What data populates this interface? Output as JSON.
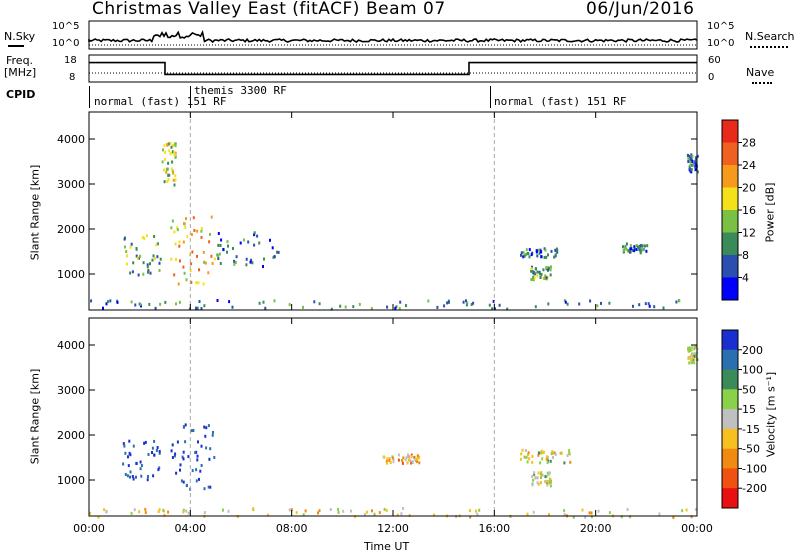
{
  "header": {
    "title": "Christmas Valley East (fitACF)",
    "beam": "Beam 07",
    "date": "06/Jun/2016"
  },
  "top_strip": {
    "left_label": "N.Sky",
    "right_label": "N.Search",
    "left_ticks": [
      "10^5",
      "10^0"
    ],
    "right_ticks": [
      "10^5",
      "10^0"
    ]
  },
  "freq_strip": {
    "left_label_1": "Freq.",
    "left_label_2": "[MHz]",
    "left_ticks": [
      "18",
      "8"
    ],
    "right_label": "Nave",
    "right_ticks": [
      "60",
      "0"
    ],
    "freq_segments": [
      {
        "start_h": 0.0,
        "end_h": 3.0,
        "level": 0.72
      },
      {
        "start_h": 3.0,
        "end_h": 15.0,
        "level": 0.28
      },
      {
        "start_h": 15.0,
        "end_h": 24.0,
        "level": 0.72
      }
    ]
  },
  "cpid": {
    "label": "CPID",
    "segments": [
      {
        "start_h": 0.0,
        "label": "normal (fast) 151 RF"
      },
      {
        "start_h": 4.0,
        "label": "themis 3300 RF"
      },
      {
        "start_h": 16.0,
        "label": "normal (fast) 151 RF"
      }
    ]
  },
  "chart_data": [
    {
      "type": "heatmap",
      "name": "power-panel",
      "ylabel": "Slant Range [km]",
      "xlabel": "",
      "xlim": [
        0,
        24
      ],
      "ylim": [
        200,
        4600
      ],
      "yticks": [
        "1000",
        "2000",
        "3000",
        "4000"
      ],
      "ytick_values": [
        1000,
        2000,
        3000,
        4000
      ],
      "colorbar": {
        "label": "Power [dB]",
        "ticks": [
          "4",
          "8",
          "12",
          "16",
          "20",
          "24",
          "28"
        ],
        "colors": [
          "#0000ff",
          "#2a4fb0",
          "#3a8a5a",
          "#7ac143",
          "#f5e11a",
          "#f59a1a",
          "#f06020",
          "#e82a1a"
        ]
      },
      "regions": [
        {
          "x": [
            1.3,
            2.8
          ],
          "y": [
            1000,
            1900
          ],
          "value": 12
        },
        {
          "x": [
            3.2,
            5.0
          ],
          "y": [
            800,
            2300
          ],
          "value": 20
        },
        {
          "x": [
            2.8,
            3.4
          ],
          "y": [
            3000,
            4000
          ],
          "value": 16
        },
        {
          "x": [
            5.0,
            7.5
          ],
          "y": [
            1200,
            2000
          ],
          "value": 8
        },
        {
          "x": [
            0,
            24
          ],
          "y": [
            250,
            450
          ],
          "value": 8
        },
        {
          "x": [
            17.0,
            18.5
          ],
          "y": [
            1400,
            1600
          ],
          "value": 8
        },
        {
          "x": [
            17.4,
            18.2
          ],
          "y": [
            900,
            1200
          ],
          "value": 12
        },
        {
          "x": [
            21.0,
            22.0
          ],
          "y": [
            1500,
            1700
          ],
          "value": 8
        },
        {
          "x": [
            23.6,
            24.0
          ],
          "y": [
            3300,
            3700
          ],
          "value": 8
        }
      ]
    },
    {
      "type": "heatmap",
      "name": "velocity-panel",
      "ylabel": "Slant Range [km]",
      "xlabel": "Time UT",
      "xlim": [
        0,
        24
      ],
      "ylim": [
        200,
        4600
      ],
      "xticks": [
        "00:00",
        "04:00",
        "08:00",
        "12:00",
        "16:00",
        "20:00",
        "00:00"
      ],
      "xtick_values": [
        0,
        4,
        8,
        12,
        16,
        20,
        24
      ],
      "yticks": [
        "1000",
        "2000",
        "3000",
        "4000"
      ],
      "ytick_values": [
        1000,
        2000,
        3000,
        4000
      ],
      "colorbar": {
        "label": "Velocity [m s⁻¹]",
        "ticks": [
          "200",
          "100",
          "50",
          "15",
          "-15",
          "-50",
          "-100",
          "-200"
        ],
        "colors": [
          "#1a2fd0",
          "#2a6fb0",
          "#3a8a5a",
          "#8ad04a",
          "#c0c0c0",
          "#f5c020",
          "#f08a10",
          "#f05010",
          "#e81010"
        ]
      },
      "regions": [
        {
          "x": [
            1.3,
            2.8
          ],
          "y": [
            1000,
            1900
          ],
          "value": 200
        },
        {
          "x": [
            3.2,
            5.0
          ],
          "y": [
            800,
            2300
          ],
          "value": 200
        },
        {
          "x": [
            0,
            24
          ],
          "y": [
            200,
            400
          ],
          "value": -15
        },
        {
          "x": [
            11.5,
            13.0
          ],
          "y": [
            1400,
            1600
          ],
          "value": -50
        },
        {
          "x": [
            17.0,
            19.0
          ],
          "y": [
            1400,
            1700
          ],
          "value": 0
        },
        {
          "x": [
            17.4,
            18.2
          ],
          "y": [
            900,
            1200
          ],
          "value": 0
        },
        {
          "x": [
            23.6,
            24.0
          ],
          "y": [
            3600,
            4000
          ],
          "value": 0
        }
      ]
    }
  ]
}
